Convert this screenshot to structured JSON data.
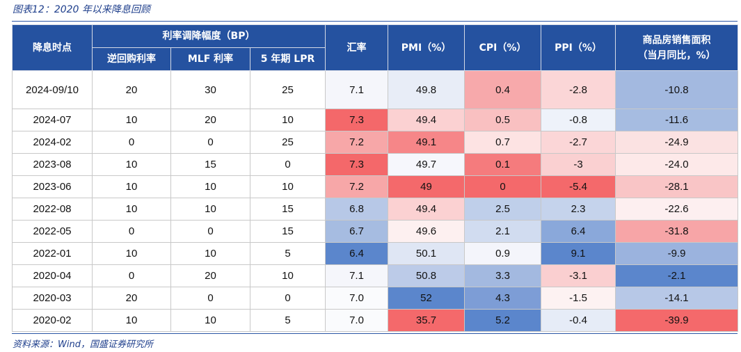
{
  "title": "图表12：2020 年以来降息回顾",
  "source": "资料来源：Wind，国盛证券研究所",
  "table": {
    "header": {
      "date": "降息时点",
      "cut_group": "利率调降幅度（BP）",
      "cut_columns": [
        "逆回购利率",
        "MLF 利率",
        "5 年期 LPR"
      ],
      "other_columns": [
        "汇率",
        "PMI（%）",
        "CPI（%）",
        "PPI（%）"
      ],
      "sales_column": [
        "商品房销售面积",
        "（当月同比，%）"
      ]
    },
    "rows": [
      [
        "2024-09/10",
        "20",
        "30",
        "25",
        "7.1",
        "49.8",
        "0.4",
        "-2.8",
        "-10.8"
      ],
      [
        "2024-07",
        "10",
        "20",
        "10",
        "7.3",
        "49.4",
        "0.5",
        "-0.8",
        "-11.6"
      ],
      [
        "2024-02",
        "0",
        "0",
        "25",
        "7.2",
        "49.1",
        "0.7",
        "-2.7",
        "-24.9"
      ],
      [
        "2023-08",
        "10",
        "15",
        "0",
        "7.3",
        "49.7",
        "0.1",
        "-3",
        "-24.0"
      ],
      [
        "2023-06",
        "10",
        "10",
        "10",
        "7.2",
        "49",
        "0",
        "-5.4",
        "-28.1"
      ],
      [
        "2022-08",
        "10",
        "10",
        "15",
        "6.8",
        "49.4",
        "2.5",
        "2.3",
        "-22.6"
      ],
      [
        "2022-05",
        "0",
        "0",
        "15",
        "6.7",
        "49.6",
        "2.1",
        "6.4",
        "-31.8"
      ],
      [
        "2022-01",
        "10",
        "10",
        "5",
        "6.4",
        "50.1",
        "0.9",
        "9.1",
        "-9.9"
      ],
      [
        "2020-04",
        "0",
        "20",
        "10",
        "7.1",
        "50.8",
        "3.3",
        "-3.1",
        "-2.1"
      ],
      [
        "2020-03",
        "20",
        "0",
        "0",
        "7.0",
        "52",
        "4.3",
        "-1.5",
        "-14.1"
      ],
      [
        "2020-02",
        "10",
        "10",
        "5",
        "7.0",
        "35.7",
        "5.2",
        "-0.4",
        "-39.9"
      ]
    ],
    "cell_colors": [
      [
        "#f5f6fb",
        "#e8edf7",
        "#f7a9ab",
        "#fbd6d7",
        "#a3b9e0"
      ],
      [
        "#f4686a",
        "#fbd1d2",
        "#f9c0c1",
        "#eef2fa",
        "#a6bce1"
      ],
      [
        "#f7a7a8",
        "#f68688",
        "#fde3e3",
        "#fbd6d7",
        "#fbe2e2"
      ],
      [
        "#f4686a",
        "#f6f7fc",
        "#f57b7d",
        "#fad0d1",
        "#fde9e9"
      ],
      [
        "#f7a7a8",
        "#f4696b",
        "#f4696b",
        "#f4696b",
        "#f9c5c6"
      ],
      [
        "#b7c8e7",
        "#fbd1d2",
        "#bfcfea",
        "#c5d3ec",
        "#fdeff0"
      ],
      [
        "#a6bce1",
        "#fdf0f0",
        "#d1dcf0",
        "#8aa8da",
        "#f7a5a7"
      ],
      [
        "#5b86cc",
        "#dfe6f4",
        "#f4f5fb",
        "#5b86cc",
        "#9bb3de"
      ],
      [
        "#f5f6fb",
        "#bccbe8",
        "#a3b9e0",
        "#facfd0",
        "#5b86cc"
      ],
      [
        "#fafbfd",
        "#5b86cc",
        "#7d9dd6",
        "#fdf2f2",
        "#b7c8e7"
      ],
      [
        "#fafbfd",
        "#f4696b",
        "#5b86cc",
        "#e6ecf7",
        "#f4696b"
      ]
    ]
  }
}
